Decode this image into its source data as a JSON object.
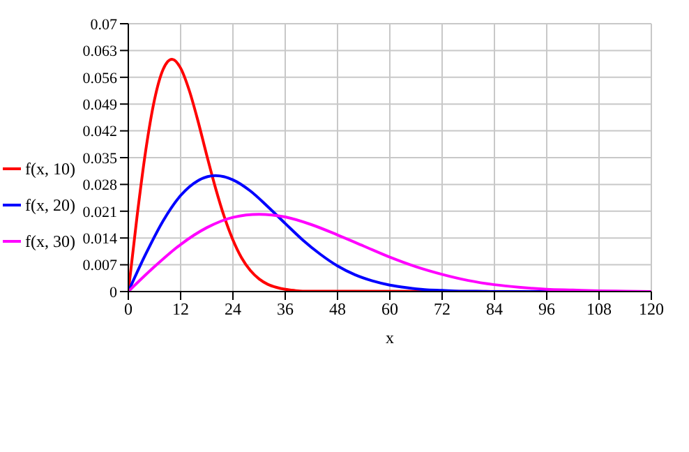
{
  "chart_data": {
    "type": "line",
    "xlabel": "x",
    "xlim": [
      0,
      120
    ],
    "xticks": [
      0,
      12,
      24,
      36,
      48,
      60,
      72,
      84,
      96,
      108,
      120
    ],
    "ylim": [
      0,
      0.07
    ],
    "yticks": [
      0,
      0.007,
      0.014,
      0.021,
      0.028,
      0.035,
      0.042,
      0.049,
      0.056,
      0.063,
      0.07
    ],
    "grid": true,
    "legend": "left",
    "marker": "none",
    "line_style": "solid",
    "series": [
      {
        "name": "f(x, 10)",
        "color": "#ff0000",
        "x": [
          0,
          2,
          4,
          6,
          8,
          10,
          12,
          14,
          16,
          18,
          20,
          22,
          24,
          26,
          28,
          30,
          32,
          34,
          36,
          38,
          40,
          120
        ],
        "values": [
          0,
          0.0196,
          0.0369,
          0.0501,
          0.0581,
          0.0607,
          0.0584,
          0.0525,
          0.0445,
          0.0356,
          0.0271,
          0.0196,
          0.0135,
          0.0088,
          0.0055,
          0.0033,
          0.0019,
          0.0011,
          0.0006,
          0.0003,
          0.0001,
          0
        ]
      },
      {
        "name": "f(x, 20)",
        "color": "#0000ff",
        "x": [
          0,
          4,
          8,
          12,
          16,
          20,
          24,
          28,
          32,
          36,
          40,
          44,
          48,
          52,
          56,
          60,
          64,
          68,
          72,
          76,
          80,
          84,
          120
        ],
        "values": [
          0,
          0.0098,
          0.0185,
          0.0251,
          0.029,
          0.0303,
          0.0292,
          0.0263,
          0.0222,
          0.0178,
          0.0135,
          0.0098,
          0.0067,
          0.0044,
          0.0028,
          0.0017,
          0.001,
          0.0005,
          0.0003,
          0.0001,
          0.0001,
          0,
          0
        ]
      },
      {
        "name": "f(x, 30)",
        "color": "#ff00ff",
        "x": [
          0,
          6,
          12,
          18,
          24,
          30,
          36,
          42,
          48,
          54,
          60,
          66,
          72,
          78,
          84,
          90,
          96,
          102,
          108,
          114,
          120
        ],
        "values": [
          0,
          0.0065,
          0.0123,
          0.0167,
          0.0194,
          0.0202,
          0.0195,
          0.0175,
          0.0148,
          0.0119,
          0.009,
          0.0065,
          0.0045,
          0.0029,
          0.0018,
          0.0011,
          0.0006,
          0.0004,
          0.0002,
          0.0001,
          0
        ]
      }
    ]
  }
}
